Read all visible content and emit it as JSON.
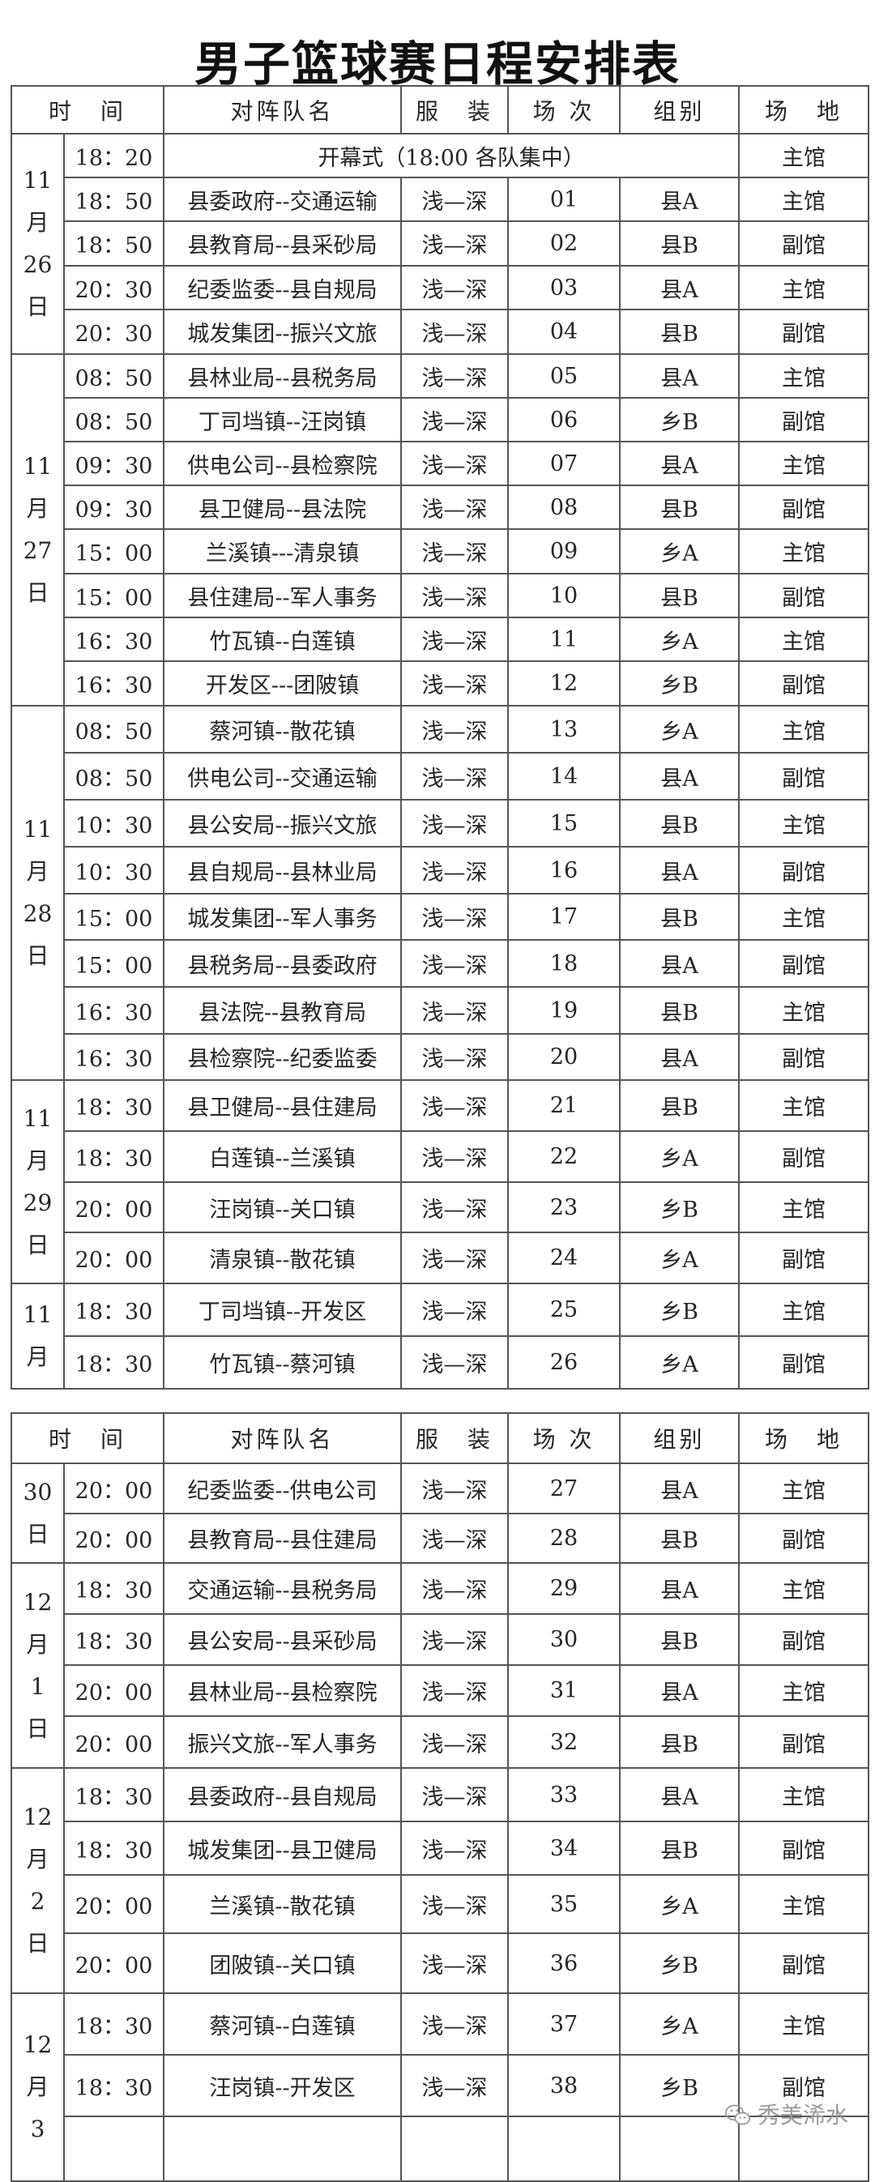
{
  "title": "男子篮球赛日程安排表",
  "headers": [
    "时　间",
    "对阵队名",
    "服　装",
    "场 次",
    "组别",
    "场　地"
  ],
  "tables": [
    {
      "days": [
        {
          "date": [
            "11",
            "月",
            "26",
            "日"
          ],
          "rows": [
            {
              "time": "18：20",
              "opening": "开幕式（18:00 各队集中）",
              "venue": "主馆"
            },
            {
              "time": "18：50",
              "match": "县委政府--交通运输",
              "uniform": "浅—深",
              "game": "01",
              "group": "县A",
              "venue": "主馆"
            },
            {
              "time": "18：50",
              "match": "县教育局--县采砂局",
              "uniform": "浅—深",
              "game": "02",
              "group": "县B",
              "venue": "副馆"
            },
            {
              "time": "20：30",
              "match": "纪委监委--县自规局",
              "uniform": "浅—深",
              "game": "03",
              "group": "县A",
              "venue": "主馆"
            },
            {
              "time": "20：30",
              "match": "城发集团--振兴文旅",
              "uniform": "浅—深",
              "game": "04",
              "group": "县B",
              "venue": "副馆"
            }
          ]
        },
        {
          "date": [
            "11",
            "月",
            "27",
            "日"
          ],
          "rows": [
            {
              "time": "08：50",
              "match": "县林业局--县税务局",
              "uniform": "浅—深",
              "game": "05",
              "group": "县A",
              "venue": "主馆"
            },
            {
              "time": "08：50",
              "match": "丁司垱镇--汪岗镇",
              "uniform": "浅—深",
              "game": "06",
              "group": "乡B",
              "venue": "副馆"
            },
            {
              "time": "09：30",
              "match": "供电公司--县检察院",
              "uniform": "浅—深",
              "game": "07",
              "group": "县A",
              "venue": "主馆"
            },
            {
              "time": "09：30",
              "match": "县卫健局--县法院",
              "uniform": "浅—深",
              "game": "08",
              "group": "县B",
              "venue": "副馆"
            },
            {
              "time": "15：00",
              "match": "兰溪镇---清泉镇",
              "uniform": "浅—深",
              "game": "09",
              "group": "乡A",
              "venue": "主馆"
            },
            {
              "time": "15：00",
              "match": "县住建局--军人事务",
              "uniform": "浅—深",
              "game": "10",
              "group": "县B",
              "venue": "副馆"
            },
            {
              "time": "16：30",
              "match": "竹瓦镇--白莲镇",
              "uniform": "浅—深",
              "game": "11",
              "group": "乡A",
              "venue": "主馆"
            },
            {
              "time": "16：30",
              "match": "开发区---团陂镇",
              "uniform": "浅—深",
              "game": "12",
              "group": "乡B",
              "venue": "副馆"
            }
          ]
        },
        {
          "date": [
            "11",
            "月",
            "28",
            "日"
          ],
          "rows": [
            {
              "time": "08：50",
              "match": "蔡河镇--散花镇",
              "uniform": "浅—深",
              "game": "13",
              "group": "乡A",
              "venue": "主馆"
            },
            {
              "time": "08：50",
              "match": "供电公司--交通运输",
              "uniform": "浅—深",
              "game": "14",
              "group": "县A",
              "venue": "副馆"
            },
            {
              "time": "10：30",
              "match": "县公安局--振兴文旅",
              "uniform": "浅—深",
              "game": "15",
              "group": "县B",
              "venue": "主馆"
            },
            {
              "time": "10：30",
              "match": "县自规局--县林业局",
              "uniform": "浅—深",
              "game": "16",
              "group": "县A",
              "venue": "副馆"
            },
            {
              "time": "15：00",
              "match": "城发集团--军人事务",
              "uniform": "浅—深",
              "game": "17",
              "group": "县B",
              "venue": "主馆"
            },
            {
              "time": "15：00",
              "match": "县税务局--县委政府",
              "uniform": "浅—深",
              "game": "18",
              "group": "县A",
              "venue": "副馆"
            },
            {
              "time": "16：30",
              "match": "县法院--县教育局",
              "uniform": "浅—深",
              "game": "19",
              "group": "县B",
              "venue": "主馆"
            },
            {
              "time": "16：30",
              "match": "县检察院--纪委监委",
              "uniform": "浅—深",
              "game": "20",
              "group": "县A",
              "venue": "副馆"
            }
          ]
        },
        {
          "date": [
            "11",
            "月",
            "29",
            "日"
          ],
          "rows": [
            {
              "time": "18：30",
              "match": "县卫健局--县住建局",
              "uniform": "浅—深",
              "game": "21",
              "group": "县B",
              "venue": "主馆"
            },
            {
              "time": "18：30",
              "match": "白莲镇--兰溪镇",
              "uniform": "浅—深",
              "game": "22",
              "group": "乡A",
              "venue": "副馆"
            },
            {
              "time": "20：00",
              "match": "汪岗镇--关口镇",
              "uniform": "浅—深",
              "game": "23",
              "group": "乡B",
              "venue": "主馆"
            },
            {
              "time": "20：00",
              "match": "清泉镇--散花镇",
              "uniform": "浅—深",
              "game": "24",
              "group": "乡A",
              "venue": "副馆"
            }
          ]
        },
        {
          "date": [
            "11",
            "月"
          ],
          "rows": [
            {
              "time": "18：30",
              "match": "丁司垱镇--开发区",
              "uniform": "浅—深",
              "game": "25",
              "group": "乡B",
              "venue": "主馆"
            },
            {
              "time": "18：30",
              "match": "竹瓦镇--蔡河镇",
              "uniform": "浅—深",
              "game": "26",
              "group": "乡A",
              "venue": "副馆"
            }
          ]
        }
      ]
    },
    {
      "days": [
        {
          "date": [
            "30",
            "日"
          ],
          "rows": [
            {
              "time": "20：00",
              "match": "纪委监委--供电公司",
              "uniform": "浅—深",
              "game": "27",
              "group": "县A",
              "venue": "主馆"
            },
            {
              "time": "20：00",
              "match": "县教育局--县住建局",
              "uniform": "浅—深",
              "game": "28",
              "group": "县B",
              "venue": "副馆"
            }
          ]
        },
        {
          "date": [
            "12",
            "月",
            "1",
            "日"
          ],
          "rows": [
            {
              "time": "18：30",
              "match": "交通运输--县税务局",
              "uniform": "浅—深",
              "game": "29",
              "group": "县A",
              "venue": "主馆"
            },
            {
              "time": "18：30",
              "match": "县公安局--县采砂局",
              "uniform": "浅—深",
              "game": "30",
              "group": "县B",
              "venue": "副馆"
            },
            {
              "time": "20：00",
              "match": "县林业局--县检察院",
              "uniform": "浅—深",
              "game": "31",
              "group": "县A",
              "venue": "主馆"
            },
            {
              "time": "20：00",
              "match": "振兴文旅--军人事务",
              "uniform": "浅—深",
              "game": "32",
              "group": "县B",
              "venue": "副馆"
            }
          ]
        },
        {
          "date": [
            "12",
            "月",
            "2",
            "日"
          ],
          "rows": [
            {
              "time": "18：30",
              "match": "县委政府--县自规局",
              "uniform": "浅—深",
              "game": "33",
              "group": "县A",
              "venue": "主馆"
            },
            {
              "time": "18：30",
              "match": "城发集团--县卫健局",
              "uniform": "浅—深",
              "game": "34",
              "group": "县B",
              "venue": "副馆"
            },
            {
              "time": "20：00",
              "match": "兰溪镇--散花镇",
              "uniform": "浅—深",
              "game": "35",
              "group": "乡A",
              "venue": "主馆"
            },
            {
              "time": "20：00",
              "match": "团陂镇--关口镇",
              "uniform": "浅—深",
              "game": "36",
              "group": "乡B",
              "venue": "副馆"
            }
          ]
        },
        {
          "date": [
            "12",
            "月",
            "3"
          ],
          "rows": [
            {
              "time": "18：30",
              "match": "蔡河镇--白莲镇",
              "uniform": "浅—深",
              "game": "37",
              "group": "乡A",
              "venue": "主馆"
            },
            {
              "time": "18：30",
              "match": "汪岗镇--开发区",
              "uniform": "浅—深",
              "game": "38",
              "group": "乡B",
              "venue": "副馆"
            },
            {}
          ]
        }
      ]
    }
  ],
  "watermark": {
    "text": "秀美浠水",
    "icon": "wechat-icon"
  }
}
